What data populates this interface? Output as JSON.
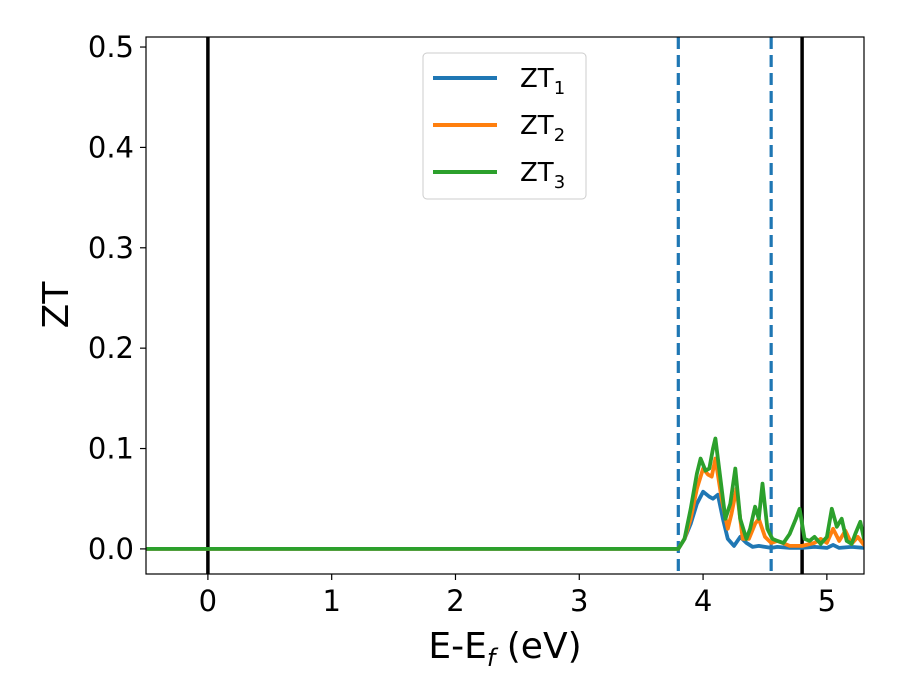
{
  "chart_data": {
    "type": "line",
    "title": "",
    "xlabel": {
      "main": "E-E",
      "sub": "f",
      "suffix": " (eV)"
    },
    "ylabel": "ZT",
    "xlim": [
      -0.5,
      5.3
    ],
    "ylim": [
      -0.025,
      0.51
    ],
    "xticks": [
      0,
      1,
      2,
      3,
      4,
      5
    ],
    "xtick_labels": [
      "0",
      "1",
      "2",
      "3",
      "4",
      "5"
    ],
    "yticks": [
      0.0,
      0.1,
      0.2,
      0.3,
      0.4,
      0.5
    ],
    "ytick_labels": [
      "0.0",
      "0.1",
      "0.2",
      "0.3",
      "0.4",
      "0.5"
    ],
    "grid": false,
    "legend_position": "upper-center",
    "vertical_lines": [
      {
        "x": 0.0,
        "style": "solid",
        "color": "#000000"
      },
      {
        "x": 4.8,
        "style": "solid",
        "color": "#000000"
      },
      {
        "x": 3.8,
        "style": "dashed",
        "color": "#1f77b4"
      },
      {
        "x": 4.55,
        "style": "dashed",
        "color": "#1f77b4"
      }
    ],
    "series": [
      {
        "name": "ZT",
        "name_sub": "1",
        "color": "#1f77b4",
        "x": [
          -0.5,
          3.7,
          3.8,
          3.85,
          3.9,
          3.95,
          4.0,
          4.05,
          4.08,
          4.12,
          4.16,
          4.2,
          4.25,
          4.3,
          4.35,
          4.4,
          4.45,
          4.5,
          4.55,
          4.6,
          4.7,
          4.8,
          4.9,
          5.0,
          5.05,
          5.1,
          5.2,
          5.3
        ],
        "y": [
          0.0,
          0.0,
          0.0,
          0.01,
          0.025,
          0.045,
          0.057,
          0.052,
          0.05,
          0.054,
          0.03,
          0.01,
          0.003,
          0.012,
          0.006,
          0.002,
          0.003,
          0.002,
          0.001,
          0.002,
          0.001,
          0.001,
          0.002,
          0.001,
          0.004,
          0.001,
          0.002,
          0.001
        ]
      },
      {
        "name": "ZT",
        "name_sub": "2",
        "color": "#ff7f0e",
        "x": [
          -0.5,
          3.7,
          3.8,
          3.85,
          3.9,
          3.95,
          4.0,
          4.04,
          4.07,
          4.1,
          4.15,
          4.2,
          4.23,
          4.27,
          4.32,
          4.37,
          4.42,
          4.45,
          4.5,
          4.55,
          4.6,
          4.7,
          4.8,
          4.9,
          4.95,
          5.0,
          5.05,
          5.1,
          5.15,
          5.2,
          5.25,
          5.3
        ],
        "y": [
          0.0,
          0.0,
          0.0,
          0.01,
          0.03,
          0.06,
          0.08,
          0.074,
          0.072,
          0.09,
          0.05,
          0.02,
          0.035,
          0.06,
          0.01,
          0.01,
          0.025,
          0.03,
          0.012,
          0.006,
          0.008,
          0.003,
          0.003,
          0.006,
          0.01,
          0.006,
          0.02,
          0.008,
          0.018,
          0.005,
          0.012,
          0.004
        ]
      },
      {
        "name": "ZT",
        "name_sub": "3",
        "color": "#2ca02c",
        "x": [
          -0.5,
          3.7,
          3.8,
          3.85,
          3.9,
          3.95,
          3.98,
          4.02,
          4.05,
          4.08,
          4.1,
          4.14,
          4.18,
          4.22,
          4.26,
          4.3,
          4.35,
          4.38,
          4.42,
          4.45,
          4.48,
          4.52,
          4.56,
          4.6,
          4.65,
          4.7,
          4.75,
          4.78,
          4.82,
          4.86,
          4.9,
          4.95,
          5.0,
          5.04,
          5.08,
          5.12,
          5.16,
          5.2,
          5.23,
          5.27,
          5.3
        ],
        "y": [
          0.0,
          0.0,
          0.0,
          0.01,
          0.04,
          0.075,
          0.09,
          0.078,
          0.08,
          0.1,
          0.11,
          0.07,
          0.03,
          0.045,
          0.08,
          0.03,
          0.01,
          0.02,
          0.042,
          0.03,
          0.065,
          0.02,
          0.01,
          0.008,
          0.006,
          0.015,
          0.03,
          0.04,
          0.01,
          0.008,
          0.012,
          0.005,
          0.012,
          0.04,
          0.022,
          0.03,
          0.008,
          0.005,
          0.015,
          0.027,
          0.01
        ]
      }
    ]
  }
}
